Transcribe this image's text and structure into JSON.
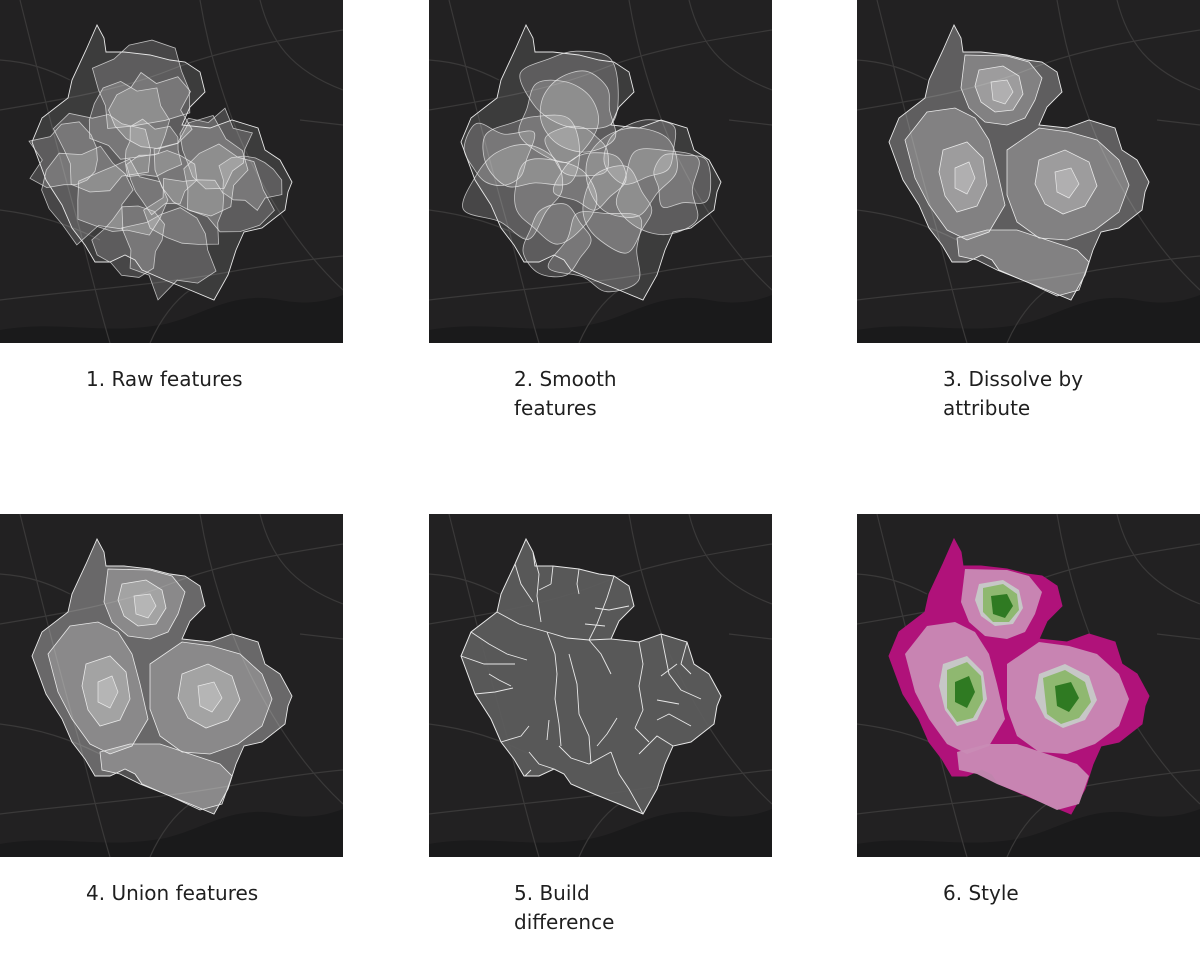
{
  "panels": [
    {
      "id": "raw-features",
      "caption": "1. Raw features",
      "style": "overlap"
    },
    {
      "id": "smooth-features",
      "caption": "2. Smooth\nfeatures",
      "style": "smooth"
    },
    {
      "id": "dissolve-by-attribute",
      "caption": "3. Dissolve by\nattribute",
      "style": "dissolve"
    },
    {
      "id": "union-features",
      "caption": "4. Union features",
      "style": "union"
    },
    {
      "id": "build-difference",
      "caption": "5. Build\ndifference",
      "style": "difference"
    },
    {
      "id": "style",
      "caption": "6. Style",
      "style": "styled"
    }
  ],
  "colors": {
    "basemap": "#222122",
    "basemap_roads": "#3a3939",
    "water": "#1a1a1b",
    "outline": "#e8e8e8",
    "fill_light": "#d6d6d6",
    "fill_dark": "#7a7a7a",
    "styled_outer": "#b0127a",
    "styled_mid": "#c98bb5",
    "styled_inner": "#c7c7c7",
    "styled_green_light": "#8fb870",
    "styled_green_dark": "#2f7a22"
  }
}
